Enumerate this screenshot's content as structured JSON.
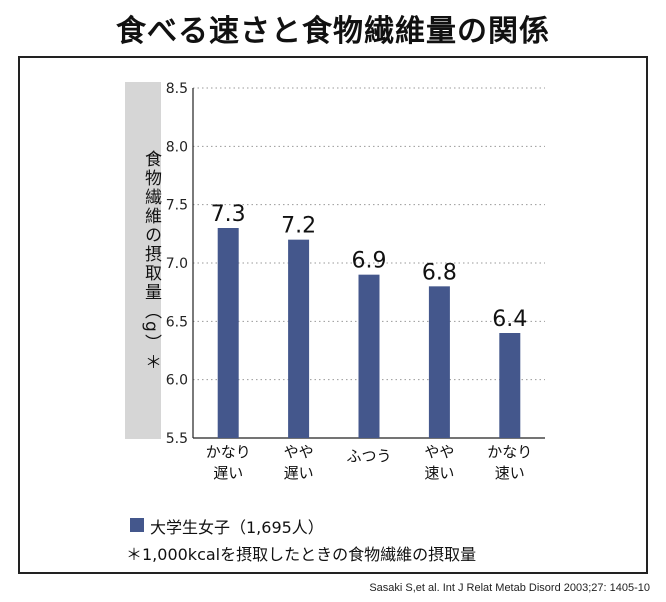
{
  "title": "食べる速さと食物繊維量の関係",
  "chart_data": {
    "type": "bar",
    "categories": [
      [
        "かなり",
        "遅い"
      ],
      [
        "やや",
        "遅い"
      ],
      [
        "ふつう"
      ],
      [
        "やや",
        "速い"
      ],
      [
        "かなり",
        "速い"
      ]
    ],
    "series": [
      {
        "name": "大学生女子（1,695人）",
        "values": [
          7.3,
          7.2,
          6.9,
          6.8,
          6.4
        ]
      }
    ],
    "data_labels": [
      "7.3",
      "7.2",
      "6.9",
      "6.8",
      "6.4"
    ],
    "ylabel": "食物繊維の摂取量（g）＊",
    "ylim": [
      5.5,
      8.5
    ],
    "yticks": [
      "5.5",
      "6.0",
      "6.5",
      "7.0",
      "7.5",
      "8.0",
      "8.5"
    ],
    "grid": "horizontal-dotted",
    "legend_position": "bottom-left",
    "bar_color": "#44578c"
  },
  "legend": {
    "label": "大学生女子（1,695人）"
  },
  "note": "＊1,000kcalを摂取したときの食物繊維の摂取量",
  "source": "Sasaki S,et al. Int J Relat Metab Disord 2003;27: 1405-10"
}
